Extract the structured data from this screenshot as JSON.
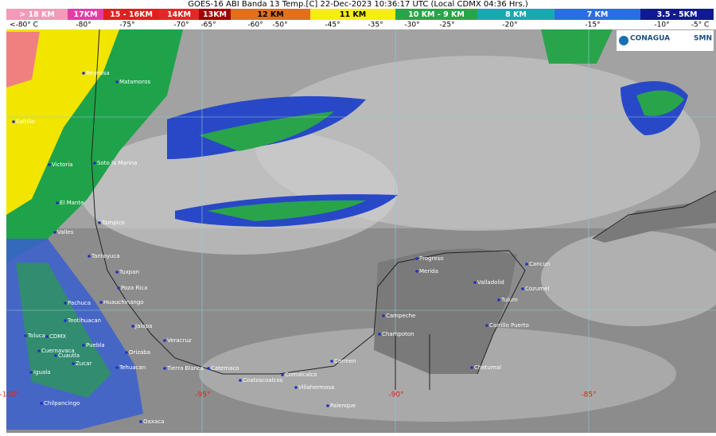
{
  "header": {
    "title": "GOES-16 ABI Banda 13 Temp.[C] 22-Dec-2023 10:36:17 UTC (Local CDMX  04:36 Hrs.)"
  },
  "legend": {
    "heights": [
      "> 18 KM",
      "17KM",
      "15 - 16KM",
      "14KM",
      "13KM",
      "12 KM",
      "11 KM",
      "10 KM - 9 KM",
      "8 KM",
      "7 KM",
      "3.5 - 5KM"
    ],
    "temps": [
      "<-80° C",
      "-80°",
      "-75°",
      "-70°",
      "-65°",
      "-60°",
      "-50°",
      "-45°",
      "-35°",
      "-30°",
      "-25°",
      "-20°",
      "-15°",
      "-10°",
      "-5° C"
    ]
  },
  "logos": [
    "CONAGUA",
    "SMN"
  ],
  "longitudes": [
    "-100°",
    "-95°",
    "-90°",
    "-85°"
  ],
  "cities": [
    "Reynosa",
    "Matamoros",
    "Saltillo",
    "Victoria",
    "Soto la Marina",
    "El Mante",
    "Tampico",
    "Valles",
    "Tantoyuca",
    "Tuxpan",
    "Poza Rica",
    "Pachuca",
    "Huauchinango",
    "Teotihuacan",
    "Jalapa",
    "Veracruz",
    "Toluca",
    "CDMX",
    "Cuernavaca",
    "Cuautla",
    "Puebla",
    "Orizaba",
    "Iguala",
    "Zucar",
    "Tehuacan",
    "Tierra Blanca",
    "Catemaco",
    "Coatzacoalcos",
    "Comalcalco",
    "Villahermosa",
    "Carmen",
    "Palenque",
    "Chilpancingo",
    "Oaxaca",
    "Campeche",
    "Champoton",
    "Progreso",
    "Merida",
    "Valladolid",
    "Cancun",
    "Cozumel",
    "Tulum",
    "Carrillo Puerto",
    "Chetumal"
  ]
}
